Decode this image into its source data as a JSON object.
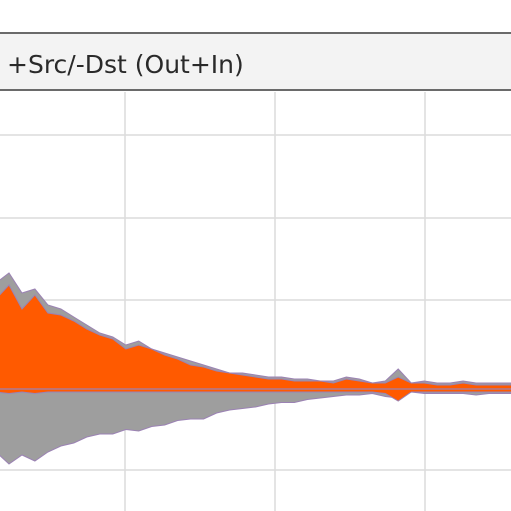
{
  "panel": {
    "title": "+Src/-Dst (Out+In)"
  },
  "colors": {
    "background": "#ffffff",
    "header_background": "#f3f3f3",
    "header_border": "#6a6a6a",
    "grid": "#dcdcdc",
    "total_series": "#9e9e9e",
    "filtered_series": "#ff5a00",
    "edge": "#9b82b4"
  },
  "chart_data": {
    "type": "area",
    "title": "+Src/-Dst (Out+In)",
    "xlabel": "",
    "ylabel": "",
    "grid": true,
    "legend": "none",
    "x": [
      0,
      1,
      2,
      3,
      4,
      5,
      6,
      7,
      8,
      9,
      10,
      11,
      12,
      13,
      14,
      15,
      16,
      17,
      18,
      19,
      20,
      21,
      22,
      23,
      24,
      25,
      26,
      27,
      28,
      29,
      30,
      31,
      32,
      33,
      34,
      35,
      36,
      37,
      38,
      39,
      40
    ],
    "ylim": [
      -100,
      100
    ],
    "series": [
      {
        "values": [
          [
            0,
            8,
            -7
          ],
          [
            1,
            9,
            -8
          ],
          [
            2,
            8,
            -8
          ],
          [
            3,
            9,
            -7
          ],
          [
            4,
            7,
            -6
          ],
          [
            5,
            6,
            -6
          ],
          [
            6,
            6,
            -5
          ],
          [
            7,
            5,
            -5
          ],
          [
            8,
            5,
            -4
          ],
          [
            9,
            5,
            -4
          ],
          [
            10,
            4,
            -3
          ],
          [
            11,
            4,
            -4
          ],
          [
            12,
            4,
            -3
          ],
          [
            13,
            3,
            -3
          ],
          [
            14,
            3,
            -3
          ],
          [
            15,
            3,
            -2
          ],
          [
            16,
            3,
            -2
          ],
          [
            17,
            3,
            -2
          ],
          [
            18,
            2,
            -2
          ],
          [
            19,
            2,
            -2
          ],
          [
            20,
            2,
            -2
          ],
          [
            21,
            2,
            -2
          ],
          [
            22,
            2,
            -1
          ],
          [
            23,
            1,
            -1
          ],
          [
            24,
            1,
            -1
          ],
          [
            25,
            1,
            -1
          ],
          [
            26,
            1,
            -1
          ],
          [
            27,
            1,
            -1
          ],
          [
            28,
            1,
            -1
          ],
          [
            29,
            1,
            -1
          ],
          [
            30,
            1,
            -1
          ],
          [
            31,
            1,
            -1
          ],
          [
            32,
            1,
            -1
          ],
          [
            33,
            1,
            -1
          ],
          [
            34,
            1,
            -1
          ],
          [
            35,
            1,
            -1
          ],
          [
            36,
            1,
            -1
          ],
          [
            37,
            1,
            -1
          ],
          [
            38,
            1,
            -1
          ],
          [
            39,
            1,
            -1
          ],
          [
            40,
            1,
            -1
          ]
        ]
      }
    ],
    "total_upper": [
      53,
      58,
      48,
      50,
      42,
      40,
      36,
      32,
      28,
      26,
      22,
      24,
      20,
      18,
      16,
      14,
      12,
      10,
      8,
      8,
      7,
      6,
      6,
      5,
      5,
      4,
      4,
      6,
      5,
      3,
      4,
      10,
      3,
      4,
      3,
      3,
      4,
      3,
      3,
      3,
      3
    ],
    "total_lower": [
      -42,
      -50,
      -44,
      -48,
      -42,
      -38,
      -36,
      -32,
      -30,
      -30,
      -27,
      -28,
      -25,
      -24,
      -21,
      -20,
      -20,
      -16,
      -14,
      -13,
      -12,
      -10,
      -9,
      -9,
      -7,
      -6,
      -5,
      -4,
      -4,
      -3,
      -5,
      -6,
      -2,
      -3,
      -3,
      -3,
      -3,
      -4,
      -3,
      -3,
      -3
    ],
    "filtered_upper": [
      45,
      52,
      40,
      47,
      38,
      37,
      34,
      30,
      27,
      25,
      20,
      22,
      20,
      17,
      15,
      12,
      11,
      9,
      8,
      7,
      6,
      5,
      5,
      4,
      4,
      4,
      3,
      5,
      4,
      3,
      3,
      6,
      3,
      3,
      2,
      2,
      3,
      2,
      2,
      2,
      2
    ],
    "filtered_lower": [
      -2,
      -3,
      -2,
      -3,
      -2,
      -2,
      -2,
      -2,
      -2,
      -2,
      -2,
      -2,
      -2,
      -2,
      -2,
      -2,
      -2,
      -2,
      -2,
      -2,
      -2,
      -2,
      -2,
      -2,
      -2,
      -2,
      -2,
      -2,
      -2,
      -2,
      -3,
      -8,
      -2,
      -2,
      -2,
      -2,
      -2,
      -2,
      -2,
      -2,
      -2
    ]
  }
}
